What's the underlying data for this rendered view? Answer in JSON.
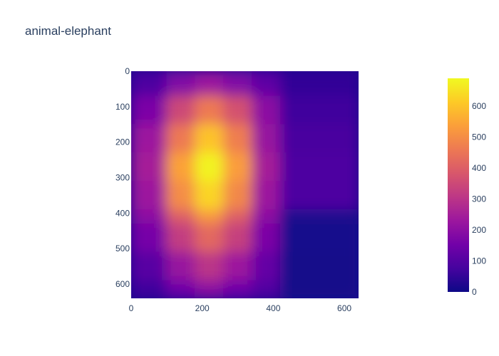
{
  "chart_data": {
    "type": "heatmap",
    "title": "animal-elephant",
    "xlabel": "",
    "ylabel": "",
    "xlim": [
      0,
      640
    ],
    "ylim": [
      640,
      0
    ],
    "y_reversed": true,
    "x_ticks": [
      0,
      200,
      400,
      600
    ],
    "y_ticks": [
      0,
      100,
      200,
      300,
      400,
      500,
      600
    ],
    "colorbar": {
      "range": [
        0,
        690
      ],
      "ticks": [
        0,
        100,
        200,
        300,
        400,
        500,
        600
      ],
      "colorscale": [
        "#0d0887",
        "#46039f",
        "#7201a8",
        "#9c179e",
        "#bd3786",
        "#d8576b",
        "#ed7953",
        "#fb9f3a",
        "#fdca26",
        "#f0f921"
      ]
    },
    "grid": false,
    "x_edges": [
      0,
      100,
      180,
      260,
      340,
      420,
      640
    ],
    "y_edges": [
      0,
      70,
      150,
      230,
      310,
      390,
      430,
      510,
      590,
      640
    ],
    "values": [
      [
        90,
        180,
        230,
        180,
        120,
        50
      ],
      [
        170,
        350,
        460,
        370,
        200,
        70
      ],
      [
        230,
        460,
        600,
        470,
        220,
        80
      ],
      [
        250,
        540,
        680,
        530,
        250,
        90
      ],
      [
        230,
        500,
        630,
        490,
        230,
        90
      ],
      [
        200,
        400,
        520,
        400,
        200,
        20
      ],
      [
        160,
        320,
        420,
        330,
        170,
        15
      ],
      [
        110,
        220,
        300,
        230,
        130,
        10
      ],
      [
        70,
        150,
        200,
        150,
        100,
        10
      ]
    ]
  }
}
